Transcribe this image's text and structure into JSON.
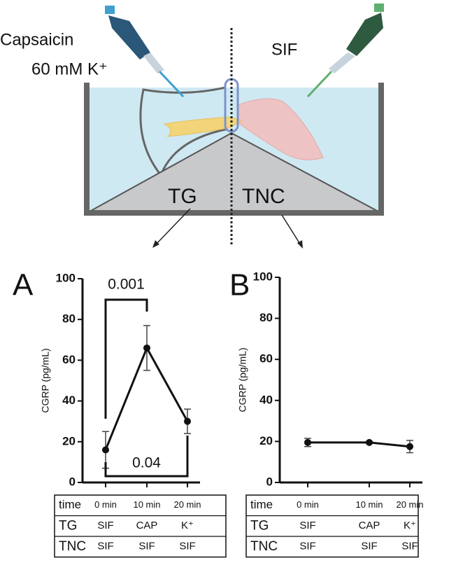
{
  "diagram": {
    "left_label_1": "Capsaicin",
    "left_label_2": "60 mM K⁺",
    "right_label": "SIF",
    "left_region": "TG",
    "right_region": "TNC"
  },
  "chart_data": [
    {
      "type": "line",
      "panel": "A",
      "ylabel": "CGRP (pg/mL)",
      "ylim": [
        0,
        100
      ],
      "yticks": [
        0,
        20,
        40,
        60,
        80,
        100
      ],
      "categories": [
        "0 min",
        "10 min",
        "20 min"
      ],
      "category_label": "time",
      "series": [
        {
          "color": "#111111",
          "values": [
            16,
            66,
            30
          ],
          "errors": [
            9,
            11,
            6
          ]
        }
      ],
      "annotations": [
        "0.001",
        "0.04"
      ],
      "table_rows": [
        {
          "label": "TG",
          "cells": [
            "SIF",
            "CAP",
            "K⁺"
          ]
        },
        {
          "label": "TNC",
          "cells": [
            "SIF",
            "SIF",
            "SIF"
          ]
        }
      ]
    },
    {
      "type": "line",
      "panel": "B",
      "ylabel": "CGRP (pg/mL)",
      "ylim": [
        0,
        100
      ],
      "yticks": [
        0,
        20,
        40,
        60,
        80,
        100
      ],
      "categories": [
        "0 min",
        "10 min",
        "20 min"
      ],
      "category_label": "time",
      "series": [
        {
          "color": "#111111",
          "values": [
            19.5,
            19.5,
            17.5
          ],
          "errors": [
            2,
            0.5,
            3
          ]
        }
      ],
      "table_rows": [
        {
          "label": "TG",
          "cells": [
            "SIF",
            "CAP",
            "K⁺"
          ]
        },
        {
          "label": "TNC",
          "cells": [
            "SIF",
            "SIF",
            "SIF"
          ]
        }
      ]
    }
  ]
}
